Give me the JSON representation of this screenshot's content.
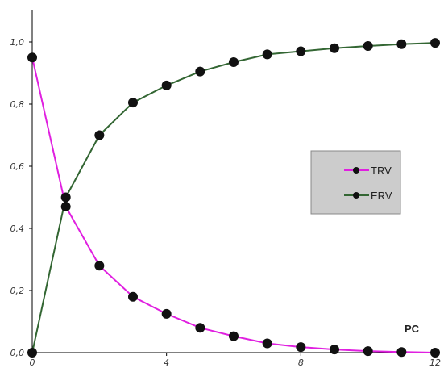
{
  "chart_data": {
    "type": "line",
    "xlabel": "PC",
    "ylabel": "",
    "xlim": [
      0,
      12
    ],
    "ylim": [
      0,
      1.05
    ],
    "xticks": [
      "0",
      "4",
      "8",
      "12"
    ],
    "yticks": [
      "0,0",
      "0,2",
      "0,4",
      "0,6",
      "0,8",
      "1,0"
    ],
    "legend_position": "right",
    "x": [
      0,
      1,
      2,
      3,
      4,
      5,
      6,
      7,
      8,
      9,
      10,
      11,
      12
    ],
    "series": [
      {
        "name": "TRV",
        "color": "#e020e0",
        "values": [
          0.95,
          0.47,
          0.28,
          0.18,
          0.125,
          0.08,
          0.053,
          0.03,
          0.018,
          0.01,
          0.005,
          0.002,
          0.0
        ]
      },
      {
        "name": "ERV",
        "color": "#336633",
        "values": [
          0.0,
          0.5,
          0.7,
          0.805,
          0.86,
          0.905,
          0.935,
          0.96,
          0.97,
          0.98,
          0.987,
          0.993,
          0.997
        ]
      }
    ],
    "grid": false,
    "marker_color": "#111111",
    "legend_bg": "#cccccc"
  }
}
